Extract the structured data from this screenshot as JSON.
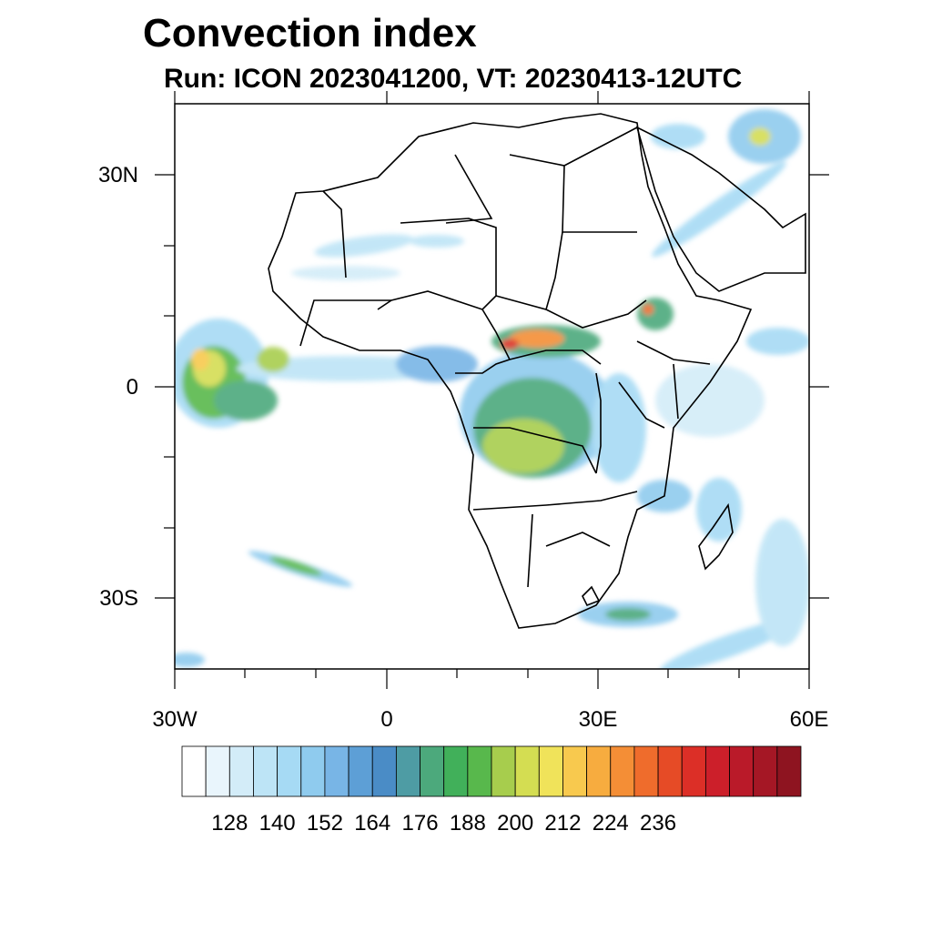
{
  "title": "Convection index",
  "subtitle": "Run: ICON 2023041200,  VT: 20230413-12UTC",
  "map": {
    "lat_labels": [
      "30N",
      "0",
      "30S"
    ],
    "lon_labels": [
      "30W",
      "0",
      "30E",
      "60E"
    ]
  },
  "colorbar": {
    "colors": [
      "#ffffff",
      "#e9f5fc",
      "#d3ecf8",
      "#bde4f6",
      "#a6daf4",
      "#8fcbee",
      "#78b5e6",
      "#5d9fd6",
      "#4a8cc6",
      "#4e9ca4",
      "#4ca97c",
      "#41b05a",
      "#58b84c",
      "#a7cd4d",
      "#d4dd52",
      "#f0e35a",
      "#f8c94e",
      "#f7ac3f",
      "#f48e36",
      "#ef6c2c",
      "#e64b26",
      "#dc2f27",
      "#cc1f2a",
      "#ba1a29",
      "#a51725",
      "#8e1420"
    ],
    "labels": [
      "128",
      "140",
      "152",
      "164",
      "176",
      "188",
      "200",
      "212",
      "224",
      "236"
    ]
  }
}
